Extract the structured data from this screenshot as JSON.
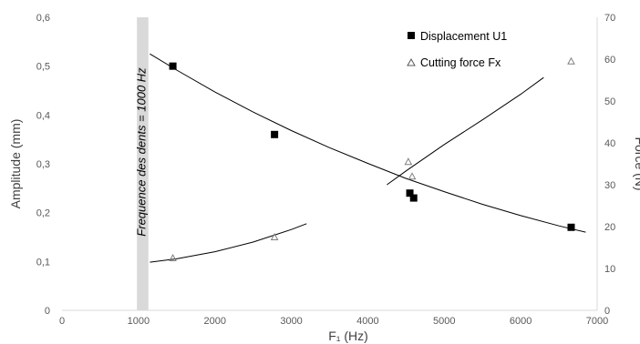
{
  "chart_data": {
    "type": "scatter",
    "xlabel": "F₁ (Hz)",
    "ylabel_left": "Amplitude (mm)",
    "ylabel_right": "Force (N)",
    "xlim": [
      0,
      7000
    ],
    "ylim_left": [
      0,
      0.6
    ],
    "ylim_right": [
      0,
      70
    ],
    "x_ticks": [
      "0",
      "1000",
      "2000",
      "3000",
      "4000",
      "5000",
      "6000",
      "7000"
    ],
    "y_left_ticks": [
      "0",
      "0,1",
      "0,2",
      "0,3",
      "0,4",
      "0,5",
      "0,6"
    ],
    "y_right_ticks": [
      "0",
      "10",
      "20",
      "30",
      "40",
      "50",
      "60",
      "70"
    ],
    "grid": false,
    "legend_position": "top-right",
    "annotation": {
      "text": "Frequence des dents = 1000 Hz",
      "band_x": [
        980,
        1130
      ]
    },
    "series": [
      {
        "name": "Displacement U1",
        "axis": "left",
        "marker": "filled-square",
        "color": "#000000",
        "x": [
          1450,
          2780,
          4550,
          4600,
          6660
        ],
        "y": [
          0.5,
          0.36,
          0.24,
          0.23,
          0.17
        ]
      },
      {
        "name": "Cutting force Fx",
        "axis": "right",
        "marker": "open-triangle",
        "color": "#7f7f7f",
        "x": [
          1450,
          2780,
          4530,
          4580,
          6660
        ],
        "y": [
          12.5,
          17.5,
          35.5,
          32.0,
          59.5
        ]
      }
    ],
    "trend_lines": [
      {
        "axis": "left",
        "x": [
          1150,
          1500,
          2000,
          2500,
          3000,
          3500,
          4000,
          4500,
          5000,
          5500,
          6000,
          6500,
          6850
        ],
        "y": [
          0.525,
          0.492,
          0.447,
          0.406,
          0.368,
          0.333,
          0.301,
          0.27,
          0.243,
          0.217,
          0.194,
          0.173,
          0.16
        ]
      },
      {
        "axis": "right",
        "x": [
          1150,
          1500,
          2000,
          2500,
          3000,
          3200
        ],
        "y": [
          11.5,
          12.3,
          14.0,
          16.3,
          19.3,
          20.7
        ]
      },
      {
        "axis": "right",
        "x": [
          4250,
          4500,
          5000,
          5500,
          6000,
          6300
        ],
        "y": [
          30.0,
          33.3,
          39.6,
          45.5,
          51.6,
          55.6
        ]
      }
    ]
  }
}
